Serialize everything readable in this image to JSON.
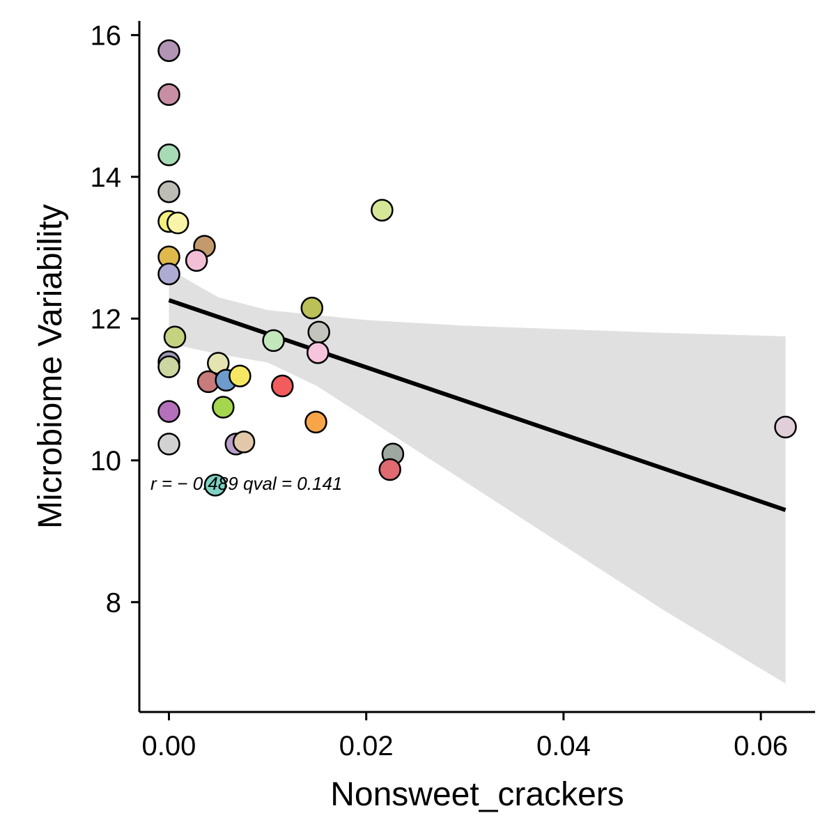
{
  "chart_data": {
    "type": "scatter",
    "title": "",
    "xlabel": "Nonsweet_crackers",
    "ylabel": "Microbiome Variability",
    "xlim": [
      -0.003,
      0.0655
    ],
    "ylim": [
      6.45,
      16.2
    ],
    "x_ticks": [
      0.0,
      0.02,
      0.04,
      0.06
    ],
    "x_tick_labels": [
      "0.00",
      "0.02",
      "0.04",
      "0.06"
    ],
    "y_ticks": [
      8,
      10,
      12,
      14,
      16
    ],
    "y_tick_labels": [
      "8",
      "10",
      "12",
      "14",
      "16"
    ],
    "grid": false,
    "legend": "none",
    "annotation": "r = − 0.489 qval = 0.141",
    "points": [
      {
        "x": 0.0,
        "y": 15.78,
        "color": "#b294b5"
      },
      {
        "x": 0.0,
        "y": 15.16,
        "color": "#c88fa4"
      },
      {
        "x": 0.0,
        "y": 14.31,
        "color": "#a6dbb6"
      },
      {
        "x": 0.0,
        "y": 13.79,
        "color": "#bdbdb6"
      },
      {
        "x": 0.0,
        "y": 13.37,
        "color": "#f4ee7e"
      },
      {
        "x": 0.0009,
        "y": 13.35,
        "color": "#f8f5a8"
      },
      {
        "x": 0.0036,
        "y": 13.02,
        "color": "#c39a6b"
      },
      {
        "x": 0.0,
        "y": 12.87,
        "color": "#dfb94b"
      },
      {
        "x": 0.0028,
        "y": 12.82,
        "color": "#f2bfd6"
      },
      {
        "x": 0.0,
        "y": 12.63,
        "color": "#aeabd3"
      },
      {
        "x": 0.0006,
        "y": 11.74,
        "color": "#c4d37f"
      },
      {
        "x": 0.0,
        "y": 11.39,
        "color": "#9f9bb5"
      },
      {
        "x": 0.0,
        "y": 11.32,
        "color": "#cbd6a0"
      },
      {
        "x": 0.005,
        "y": 11.37,
        "color": "#e4e4b0"
      },
      {
        "x": 0.004,
        "y": 11.11,
        "color": "#c97b7b"
      },
      {
        "x": 0.0058,
        "y": 11.13,
        "color": "#6d9ccc"
      },
      {
        "x": 0.0072,
        "y": 11.19,
        "color": "#f5e763"
      },
      {
        "x": 0.0115,
        "y": 11.05,
        "color": "#f25c5c"
      },
      {
        "x": 0.0106,
        "y": 11.69,
        "color": "#c3e6bd"
      },
      {
        "x": 0.0145,
        "y": 12.15,
        "color": "#bcc058"
      },
      {
        "x": 0.0152,
        "y": 11.81,
        "color": "#c4c4bf"
      },
      {
        "x": 0.0151,
        "y": 11.52,
        "color": "#f8c4dd"
      },
      {
        "x": 0.0216,
        "y": 13.53,
        "color": "#d6e897"
      },
      {
        "x": 0.0055,
        "y": 10.75,
        "color": "#a4d64f"
      },
      {
        "x": 0.0,
        "y": 10.69,
        "color": "#b470ba"
      },
      {
        "x": 0.0149,
        "y": 10.54,
        "color": "#f8a54a"
      },
      {
        "x": 0.0068,
        "y": 10.23,
        "color": "#b9a0c8"
      },
      {
        "x": 0.0076,
        "y": 10.26,
        "color": "#e0c8a9"
      },
      {
        "x": 0.0,
        "y": 10.23,
        "color": "#d2d2d2"
      },
      {
        "x": 0.0227,
        "y": 10.09,
        "color": "#9fa7a1"
      },
      {
        "x": 0.0224,
        "y": 9.87,
        "color": "#e06a70"
      },
      {
        "x": 0.0047,
        "y": 9.65,
        "color": "#7fd1c2"
      },
      {
        "x": 0.0625,
        "y": 10.47,
        "color": "#e0ced9"
      }
    ],
    "fit": {
      "x": [
        0.0,
        0.0625
      ],
      "y": [
        12.26,
        9.3
      ],
      "color": "#000000"
    },
    "confidence_band": {
      "color": "#e0e0e0",
      "x": [
        0.0,
        0.005,
        0.01,
        0.015,
        0.02,
        0.03,
        0.04,
        0.05,
        0.0625
      ],
      "upper": [
        12.7,
        12.3,
        12.12,
        12.05,
        11.98,
        11.9,
        11.85,
        11.8,
        11.75
      ],
      "lower": [
        11.65,
        11.5,
        11.38,
        11.05,
        10.6,
        9.7,
        8.8,
        7.9,
        6.85
      ]
    }
  }
}
